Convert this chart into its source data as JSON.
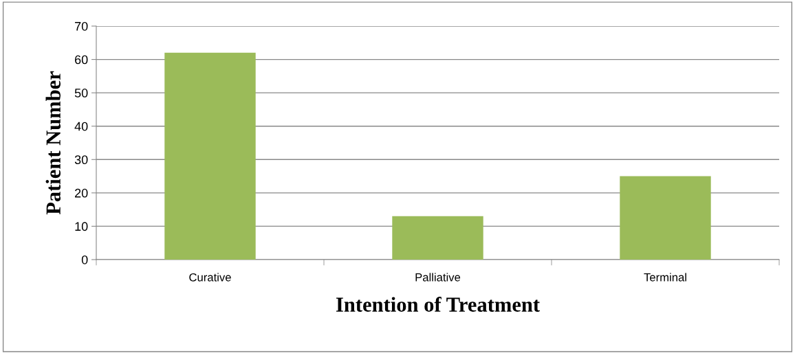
{
  "chart_data": {
    "type": "bar",
    "xlabel": "Intention of Treatment",
    "ylabel": "Patient Number",
    "categories": [
      "Curative",
      "Palliative",
      "Terminal"
    ],
    "values": [
      62,
      13,
      25
    ],
    "color": "#9bbb59",
    "ylim": [
      0,
      70
    ],
    "yticks": [
      0,
      10,
      20,
      30,
      40,
      50,
      60,
      70
    ],
    "grid": "y",
    "legend": false
  }
}
